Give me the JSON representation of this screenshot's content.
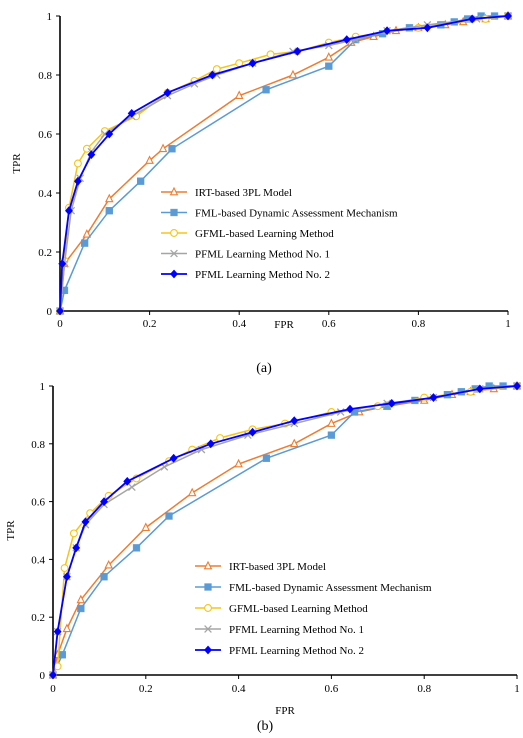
{
  "chart_data": [
    {
      "type": "line",
      "caption": "(a)",
      "xlabel": "FPR",
      "ylabel": "TPR",
      "xlim": [
        0,
        1
      ],
      "ylim": [
        0,
        1
      ],
      "xticks": [
        {
          "value": 0,
          "label": "0"
        },
        {
          "value": 0.2,
          "label": "0.2"
        },
        {
          "value": 0.4,
          "label": "0.4"
        },
        {
          "value": 0.6,
          "label": "0.6"
        },
        {
          "value": 0.8,
          "label": "0.8"
        },
        {
          "value": 1,
          "label": "1"
        }
      ],
      "yticks": [
        {
          "value": 0,
          "label": "0"
        },
        {
          "value": 0.2,
          "label": "0.2"
        },
        {
          "value": 0.4,
          "label": "0.4"
        },
        {
          "value": 0.6,
          "label": "0.6"
        },
        {
          "value": 0.8,
          "label": "0.8"
        },
        {
          "value": 1,
          "label": "1"
        }
      ],
      "grid": false,
      "legend_position": "center-right",
      "series": [
        {
          "name": "IRT-based 3PL Model",
          "color": "#ED7D31",
          "marker": "triangle",
          "x": [
            0,
            0.01,
            0.06,
            0.11,
            0.2,
            0.23,
            0.4,
            0.52,
            0.6,
            0.65,
            0.7,
            0.75,
            0.8,
            0.86,
            0.9,
            0.95,
            1
          ],
          "y": [
            0,
            0.16,
            0.26,
            0.38,
            0.51,
            0.55,
            0.73,
            0.8,
            0.86,
            0.91,
            0.93,
            0.95,
            0.96,
            0.97,
            0.98,
            0.99,
            1
          ]
        },
        {
          "name": "FML-based Dynamic Assessment Mechanism",
          "color": "#5B9BD5",
          "marker": "square",
          "x": [
            0,
            0.01,
            0.055,
            0.11,
            0.18,
            0.25,
            0.46,
            0.6,
            0.66,
            0.72,
            0.78,
            0.85,
            0.88,
            0.91,
            0.94,
            0.97,
            1
          ],
          "y": [
            0,
            0.07,
            0.23,
            0.34,
            0.44,
            0.55,
            0.75,
            0.83,
            0.92,
            0.94,
            0.96,
            0.97,
            0.98,
            0.99,
            1,
            1,
            1
          ]
        },
        {
          "name": "GFML-based Learning Method",
          "color": "#F5C518",
          "marker": "circle",
          "x": [
            0,
            0.01,
            0.02,
            0.04,
            0.06,
            0.1,
            0.17,
            0.24,
            0.3,
            0.35,
            0.4,
            0.47,
            0.53,
            0.6,
            0.66,
            0.8,
            0.95,
            1
          ],
          "y": [
            0,
            0.17,
            0.35,
            0.5,
            0.55,
            0.61,
            0.66,
            0.74,
            0.78,
            0.82,
            0.84,
            0.87,
            0.88,
            0.91,
            0.93,
            0.96,
            0.99,
            1
          ]
        },
        {
          "name": "PFML Learning Method No. 1",
          "color": "#A5A5A5",
          "marker": "x",
          "x": [
            0,
            0.01,
            0.025,
            0.045,
            0.07,
            0.1,
            0.16,
            0.24,
            0.3,
            0.35,
            0.43,
            0.52,
            0.6,
            0.66,
            0.73,
            0.82,
            0.93,
            1
          ],
          "y": [
            0,
            0.16,
            0.34,
            0.45,
            0.54,
            0.6,
            0.66,
            0.73,
            0.77,
            0.8,
            0.84,
            0.88,
            0.9,
            0.92,
            0.95,
            0.97,
            0.99,
            1
          ]
        },
        {
          "name": "PFML Learning Method No. 2",
          "color": "#0000FF",
          "marker": "diamond",
          "x": [
            0,
            0.005,
            0.02,
            0.04,
            0.07,
            0.11,
            0.16,
            0.24,
            0.34,
            0.43,
            0.53,
            0.64,
            0.73,
            0.82,
            0.92,
            1
          ],
          "y": [
            0,
            0.16,
            0.34,
            0.44,
            0.53,
            0.6,
            0.67,
            0.74,
            0.8,
            0.84,
            0.88,
            0.92,
            0.95,
            0.96,
            0.99,
            1
          ]
        }
      ]
    },
    {
      "type": "line",
      "caption": "(b)",
      "xlabel": "FPR",
      "ylabel": "TPR",
      "xlim": [
        0,
        1
      ],
      "ylim": [
        0,
        1
      ],
      "xticks": [
        {
          "value": 0,
          "label": "0"
        },
        {
          "value": 0.2,
          "label": "0.2"
        },
        {
          "value": 0.4,
          "label": "0.4"
        },
        {
          "value": 0.6,
          "label": "0.6"
        },
        {
          "value": 0.8,
          "label": "0.8"
        },
        {
          "value": 1,
          "label": "1"
        }
      ],
      "yticks": [
        {
          "value": 0,
          "label": "0"
        },
        {
          "value": 0.2,
          "label": "0.2"
        },
        {
          "value": 0.4,
          "label": "0.4"
        },
        {
          "value": 0.6,
          "label": "0.6"
        },
        {
          "value": 0.8,
          "label": "0.8"
        },
        {
          "value": 1,
          "label": "1"
        }
      ],
      "grid": false,
      "legend_position": "center-right",
      "series": [
        {
          "name": "IRT-based 3PL Model",
          "color": "#ED7D31",
          "marker": "triangle",
          "x": [
            0,
            0.01,
            0.03,
            0.06,
            0.12,
            0.2,
            0.3,
            0.4,
            0.52,
            0.6,
            0.66,
            0.72,
            0.8,
            0.86,
            0.9,
            0.95,
            1
          ],
          "y": [
            0,
            0.07,
            0.16,
            0.26,
            0.38,
            0.51,
            0.63,
            0.73,
            0.8,
            0.87,
            0.91,
            0.93,
            0.95,
            0.97,
            0.98,
            0.99,
            1
          ]
        },
        {
          "name": "FML-based Dynamic Assessment Mechanism",
          "color": "#5B9BD5",
          "marker": "square",
          "x": [
            0,
            0.02,
            0.06,
            0.11,
            0.18,
            0.25,
            0.46,
            0.6,
            0.65,
            0.72,
            0.78,
            0.85,
            0.88,
            0.91,
            0.94,
            0.97,
            1
          ],
          "y": [
            0,
            0.07,
            0.23,
            0.34,
            0.44,
            0.55,
            0.75,
            0.83,
            0.91,
            0.93,
            0.95,
            0.97,
            0.98,
            0.99,
            1,
            1,
            1
          ]
        },
        {
          "name": "GFML-based Learning Method",
          "color": "#F5C518",
          "marker": "circle",
          "x": [
            0,
            0.01,
            0.025,
            0.045,
            0.08,
            0.12,
            0.18,
            0.25,
            0.3,
            0.36,
            0.43,
            0.5,
            0.6,
            0.7,
            0.8,
            0.9,
            1
          ],
          "y": [
            0,
            0.03,
            0.37,
            0.49,
            0.56,
            0.62,
            0.68,
            0.74,
            0.78,
            0.82,
            0.85,
            0.87,
            0.91,
            0.93,
            0.96,
            0.98,
            1
          ]
        },
        {
          "name": "PFML Learning Method No. 1",
          "color": "#A5A5A5",
          "marker": "x",
          "x": [
            0,
            0.01,
            0.03,
            0.05,
            0.07,
            0.11,
            0.17,
            0.24,
            0.32,
            0.42,
            0.52,
            0.62,
            0.72,
            0.82,
            0.92,
            1
          ],
          "y": [
            0,
            0.15,
            0.34,
            0.44,
            0.52,
            0.59,
            0.65,
            0.72,
            0.78,
            0.83,
            0.87,
            0.91,
            0.94,
            0.96,
            0.99,
            1
          ]
        },
        {
          "name": "PFML Learning Method No. 2",
          "color": "#0000FF",
          "marker": "diamond",
          "x": [
            0,
            0.01,
            0.03,
            0.05,
            0.07,
            0.11,
            0.16,
            0.26,
            0.34,
            0.43,
            0.52,
            0.64,
            0.73,
            0.82,
            0.92,
            1
          ],
          "y": [
            0,
            0.15,
            0.34,
            0.44,
            0.53,
            0.6,
            0.67,
            0.75,
            0.8,
            0.84,
            0.88,
            0.92,
            0.94,
            0.96,
            0.99,
            1
          ]
        }
      ]
    }
  ]
}
